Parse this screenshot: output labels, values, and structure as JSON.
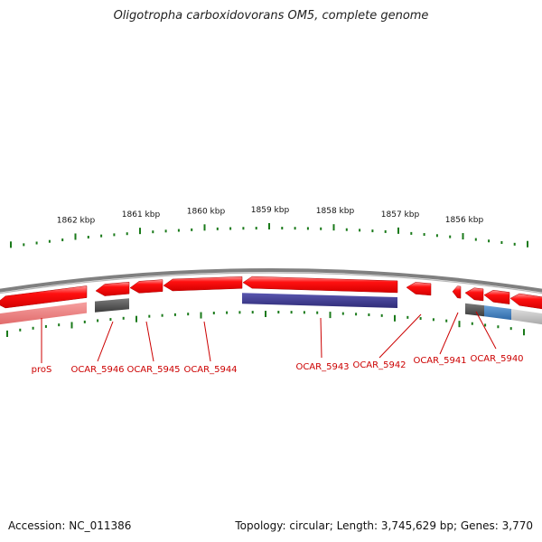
{
  "title": "Oligotropha carboxidovorans OM5, complete genome",
  "scale": {
    "unit": "kbp",
    "labels": [
      "1862 kbp",
      "1861 kbp",
      "1860 kbp",
      "1859 kbp",
      "1858 kbp",
      "1857 kbp",
      "1856 kbp"
    ]
  },
  "genes": [
    {
      "name": "proS"
    },
    {
      "name": "OCAR_5946"
    },
    {
      "name": "OCAR_5945"
    },
    {
      "name": "OCAR_5944"
    },
    {
      "name": "OCAR_5943"
    },
    {
      "name": "OCAR_5942"
    },
    {
      "name": "OCAR_5941"
    },
    {
      "name": "OCAR_5940"
    }
  ],
  "colors": {
    "tick": "#1a7a1a",
    "backbone": "#808080",
    "gene": "#ff0000",
    "gene_label": "#cc0000",
    "feature_pink": "#f08080",
    "feature_dark": "#555555",
    "feature_purple": "#3d3a8c",
    "feature_blue": "#3f7fbf",
    "feature_light": "#c8c8c8"
  },
  "footer": {
    "accession": "Accession: NC_011386",
    "summary": "Topology: circular; Length: 3,745,629 bp; Genes: 3,770"
  }
}
